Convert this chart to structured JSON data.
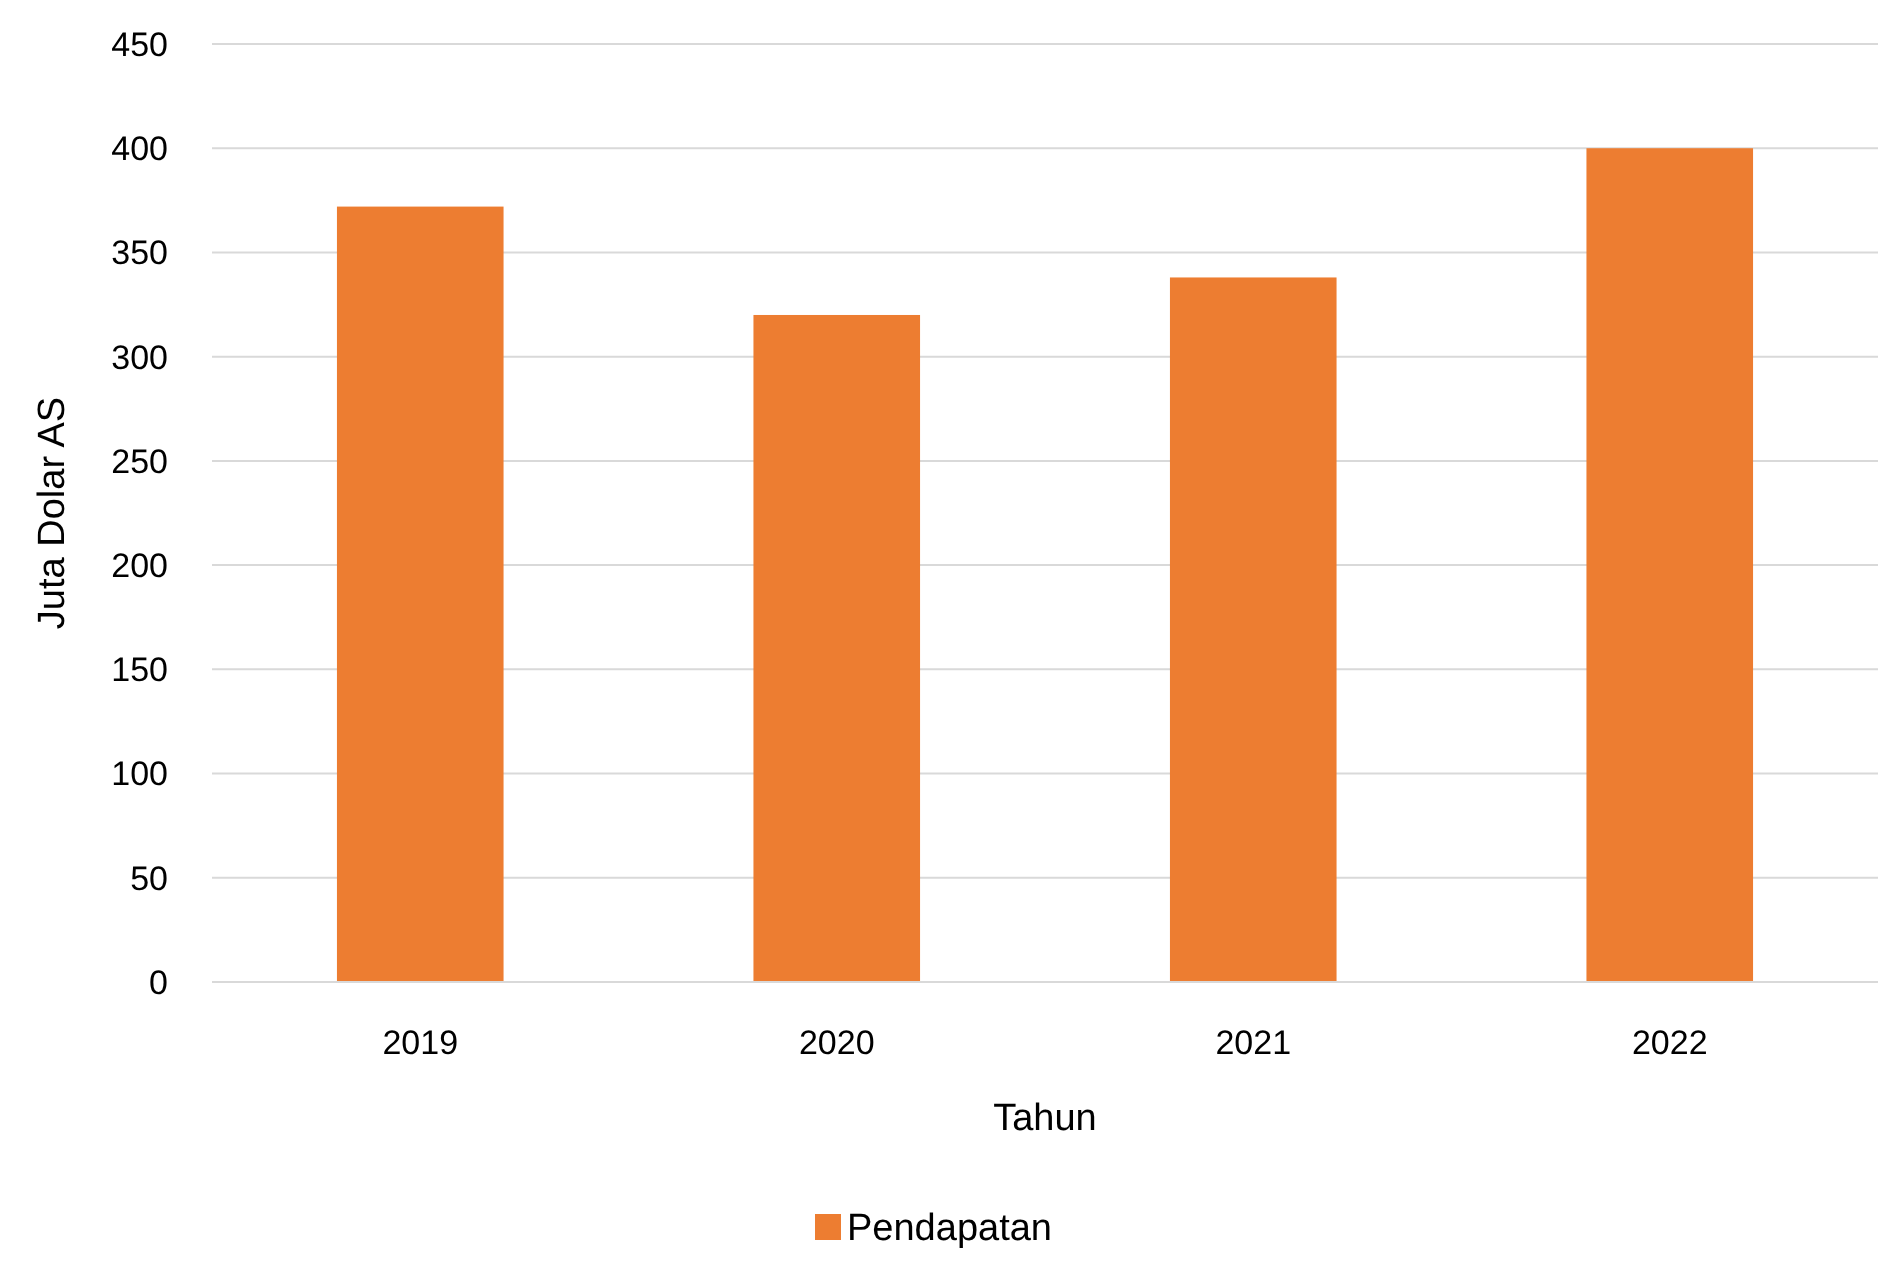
{
  "chart_data": {
    "type": "bar",
    "xlabel": "Tahun",
    "ylabel": "Juta Dolar AS",
    "categories": [
      "2019",
      "2020",
      "2021",
      "2022"
    ],
    "series": [
      {
        "name": "Pendapatan",
        "color": "#ed7d31",
        "values": [
          372,
          320,
          338,
          400
        ]
      }
    ],
    "ylim": [
      0,
      450
    ],
    "yticks": [
      0,
      50,
      100,
      150,
      200,
      250,
      300,
      350,
      400,
      450
    ],
    "grid": "y",
    "legend": "bottom"
  }
}
